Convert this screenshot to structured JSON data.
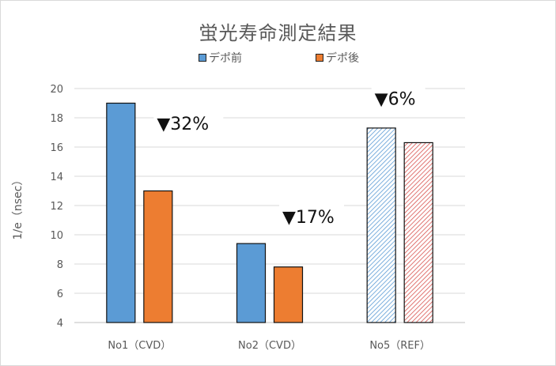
{
  "chart_data": {
    "type": "bar",
    "title": "蛍光寿命測定結果",
    "ylabel": "1/e（nsec）",
    "xlabel": "",
    "ylim": [
      4,
      20
    ],
    "yticks": [
      4,
      6,
      8,
      10,
      12,
      14,
      16,
      18,
      20
    ],
    "grid": true,
    "legend_position": "top",
    "categories": [
      "No1（CVD）",
      "No2（CVD）",
      "No5（REF）"
    ],
    "series": [
      {
        "name": "デポ前",
        "values": [
          19.0,
          9.4,
          17.3
        ],
        "color": "#5b9bd5"
      },
      {
        "name": "デポ後",
        "values": [
          13.0,
          7.8,
          16.3
        ],
        "color": "#ed7d31"
      }
    ],
    "hatched_category": "No5（REF）",
    "annotations": [
      "▼32%",
      "▼17%",
      "▼6%"
    ]
  }
}
